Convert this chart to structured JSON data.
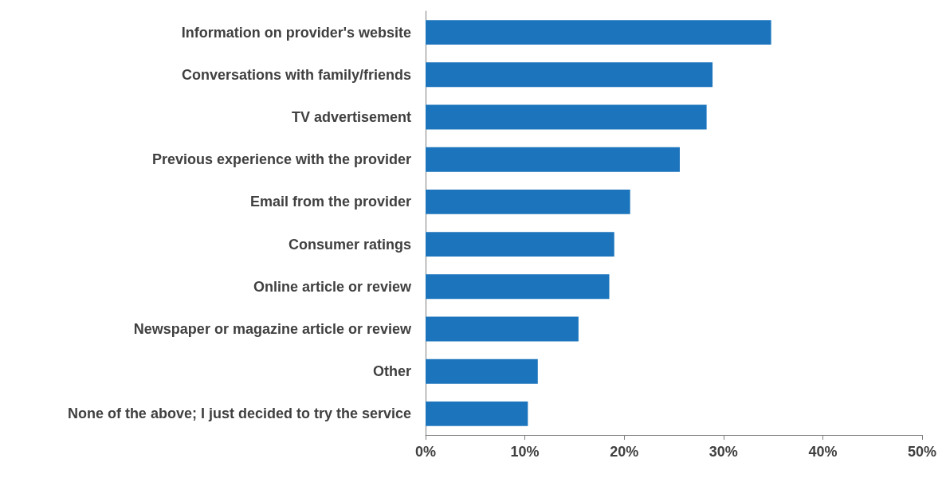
{
  "chart_data": {
    "type": "bar",
    "orientation": "horizontal",
    "categories": [
      "Information on provider's website",
      "Conversations with family/friends",
      "TV advertisement",
      "Previous experience with the provider",
      "Email from the provider",
      "Consumer ratings",
      "Online article or review",
      "Newspaper or magazine article or review",
      "Other",
      "None of the above; I just decided to try the service"
    ],
    "values": [
      34.8,
      28.9,
      28.3,
      25.6,
      20.6,
      19.0,
      18.5,
      15.4,
      11.3,
      10.3
    ],
    "color": "#1c75bc",
    "xlim": [
      0,
      50
    ],
    "xticks": [
      {
        "value": 0,
        "label": "0%"
      },
      {
        "value": 10,
        "label": "10%"
      },
      {
        "value": 20,
        "label": "20%"
      },
      {
        "value": 30,
        "label": "30%"
      },
      {
        "value": 40,
        "label": "40%"
      },
      {
        "value": 50,
        "label": "50%"
      }
    ],
    "grid": false
  }
}
